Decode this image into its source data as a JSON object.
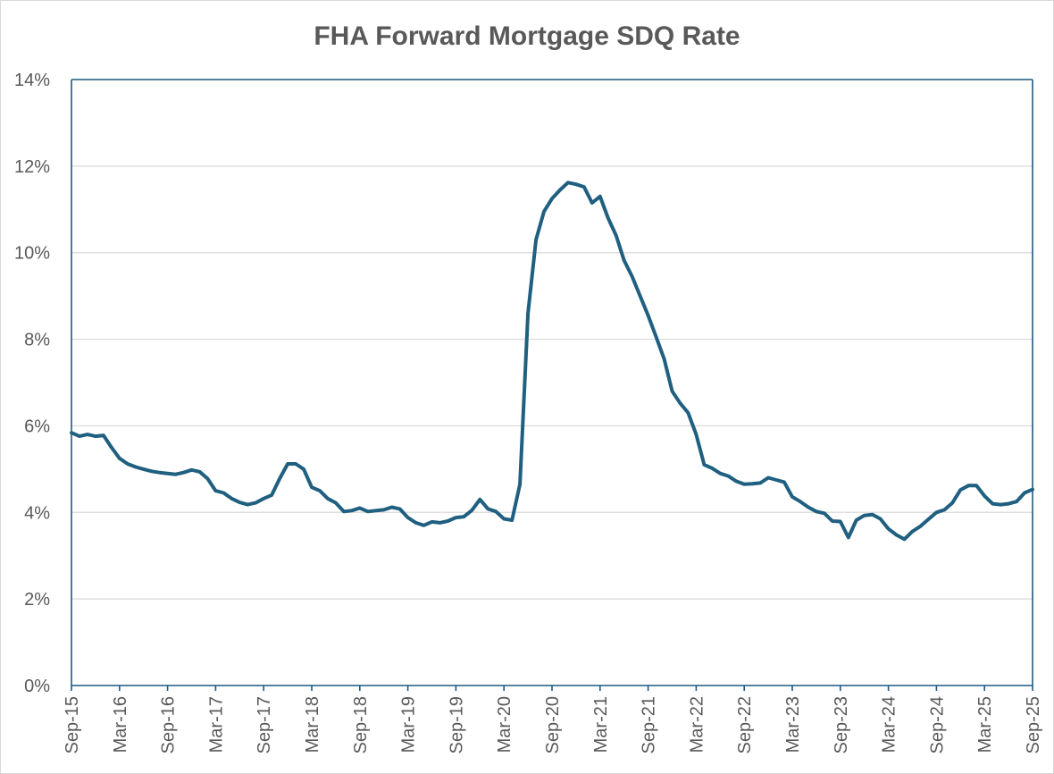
{
  "chart_data": {
    "type": "line",
    "title": "FHA Forward Mortgage SDQ Rate",
    "xlabel": "",
    "ylabel": "",
    "ylim": [
      0,
      14
    ],
    "yticks": [
      "0%",
      "2%",
      "4%",
      "6%",
      "8%",
      "10%",
      "12%",
      "14%"
    ],
    "xticks": [
      "Sep-15",
      "Mar-16",
      "Sep-16",
      "Mar-17",
      "Sep-17",
      "Mar-18",
      "Sep-18",
      "Mar-19",
      "Sep-19",
      "Mar-20",
      "Sep-20",
      "Mar-21",
      "Sep-21",
      "Mar-22",
      "Sep-22",
      "Mar-23",
      "Sep-23",
      "Mar-24",
      "Sep-24",
      "Mar-25",
      "Sep-25"
    ],
    "grid": true,
    "legend": "none",
    "series": [
      {
        "name": "FHA Forward Mortgage SDQ Rate",
        "color": "#1f5f80",
        "x_start": "Sep-15",
        "frequency": "monthly",
        "values": [
          5.84,
          5.76,
          5.8,
          5.76,
          5.78,
          5.5,
          5.25,
          5.12,
          5.05,
          5.0,
          4.95,
          4.92,
          4.9,
          4.88,
          4.92,
          4.98,
          4.94,
          4.78,
          4.5,
          4.45,
          4.32,
          4.23,
          4.18,
          4.22,
          4.32,
          4.4,
          4.78,
          5.12,
          5.12,
          5.0,
          4.58,
          4.5,
          4.32,
          4.22,
          4.02,
          4.04,
          4.1,
          4.02,
          4.04,
          4.06,
          4.12,
          4.08,
          3.88,
          3.76,
          3.7,
          3.78,
          3.76,
          3.8,
          3.88,
          3.9,
          4.05,
          4.3,
          4.08,
          4.02,
          3.85,
          3.82,
          4.65,
          8.6,
          10.3,
          10.95,
          11.25,
          11.45,
          11.62,
          11.58,
          11.52,
          11.15,
          11.3,
          10.8,
          10.4,
          9.82,
          9.45,
          9.0,
          8.55,
          8.05,
          7.55,
          6.8,
          6.52,
          6.3,
          5.8,
          5.1,
          5.02,
          4.9,
          4.84,
          4.72,
          4.65,
          4.66,
          4.68,
          4.8,
          4.75,
          4.7,
          4.36,
          4.25,
          4.12,
          4.02,
          3.98,
          3.8,
          3.79,
          3.42,
          3.82,
          3.93,
          3.95,
          3.85,
          3.62,
          3.48,
          3.38,
          3.56,
          3.68,
          3.84,
          4.0,
          4.06,
          4.22,
          4.52,
          4.62,
          4.62,
          4.38,
          4.2,
          4.18,
          4.2,
          4.25,
          4.45,
          4.53
        ]
      }
    ]
  }
}
